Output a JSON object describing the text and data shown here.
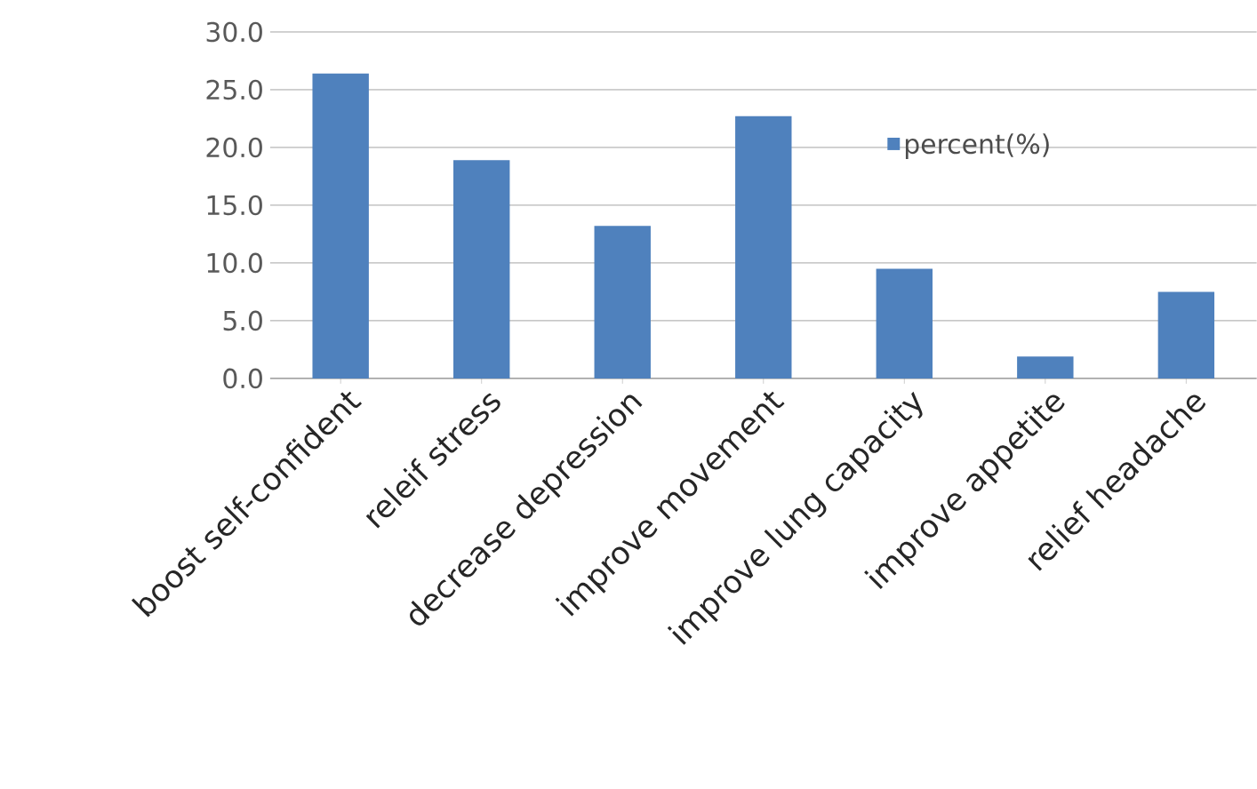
{
  "chart_data": {
    "type": "bar",
    "categories": [
      "boost self-confident",
      "releif stress",
      "decrease depression",
      "improve movement",
      "improve lung capacity",
      "improve appetite",
      "relief headache"
    ],
    "series": [
      {
        "name": "percent(%)",
        "color": "#4f81bd",
        "values": [
          26.4,
          18.9,
          13.2,
          22.7,
          9.5,
          1.9,
          7.5
        ]
      }
    ],
    "ylim": [
      0,
      30
    ],
    "yticks": [
      {
        "value": 0,
        "label": "0.0"
      },
      {
        "value": 5,
        "label": "5.0"
      },
      {
        "value": 10,
        "label": "10.0"
      },
      {
        "value": 15,
        "label": "15.0"
      },
      {
        "value": 20,
        "label": "20.0"
      },
      {
        "value": 25,
        "label": "25.0"
      },
      {
        "value": 30,
        "label": "30.0"
      }
    ],
    "grid": "y",
    "legend": "right"
  }
}
